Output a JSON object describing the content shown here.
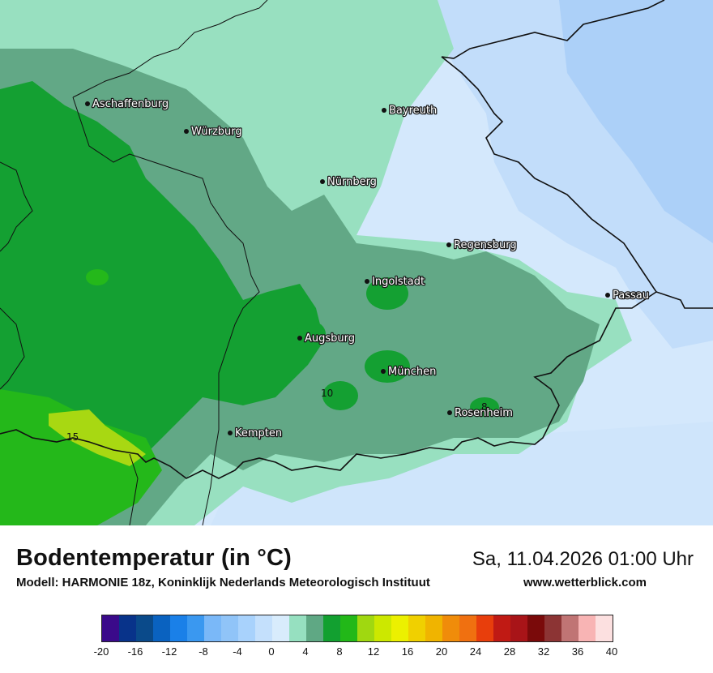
{
  "map": {
    "cities": [
      {
        "name": "Aschaffenburg"
      },
      {
        "name": "Würzburg"
      },
      {
        "name": "Bayreuth"
      },
      {
        "name": "Nürnberg"
      },
      {
        "name": "Regensburg"
      },
      {
        "name": "Ingolstadt"
      },
      {
        "name": "Passau"
      },
      {
        "name": "Augsburg"
      },
      {
        "name": "München"
      },
      {
        "name": "Rosenheim"
      },
      {
        "name": "Kempten"
      }
    ],
    "contour_labels": [
      "10",
      "15",
      "8"
    ]
  },
  "footer": {
    "title": "Bodentemperatur (in °C)",
    "subtitle": "Modell: HARMONIE 18z, Koninklijk Nederlands Meteorologisch Instituut",
    "datetime": "Sa, 11.04.2026 01:00 Uhr",
    "website": "www.wetterblick.com"
  },
  "legend": {
    "colors": [
      "#3a0a8a",
      "#08338a",
      "#0a4a8a",
      "#0a62c0",
      "#1a80e8",
      "#3a98f0",
      "#7ab8f8",
      "#90c4f8",
      "#a8d2fc",
      "#c4e0fc",
      "#d8ecfc",
      "#96e0c0",
      "#5fa884",
      "#12a030",
      "#22b818",
      "#a0d810",
      "#cce800",
      "#ecf000",
      "#f0d000",
      "#f0b400",
      "#f08c0a",
      "#f07010",
      "#e83e0c",
      "#c01a14",
      "#a81418",
      "#7a0a0a",
      "#8c3434",
      "#c07474",
      "#f8b4b4",
      "#fce0e0"
    ],
    "ticks": [
      "-20",
      "-16",
      "-12",
      "-8",
      "-4",
      "0",
      "4",
      "8",
      "12",
      "16",
      "20",
      "24",
      "28",
      "32",
      "36",
      "40"
    ]
  }
}
